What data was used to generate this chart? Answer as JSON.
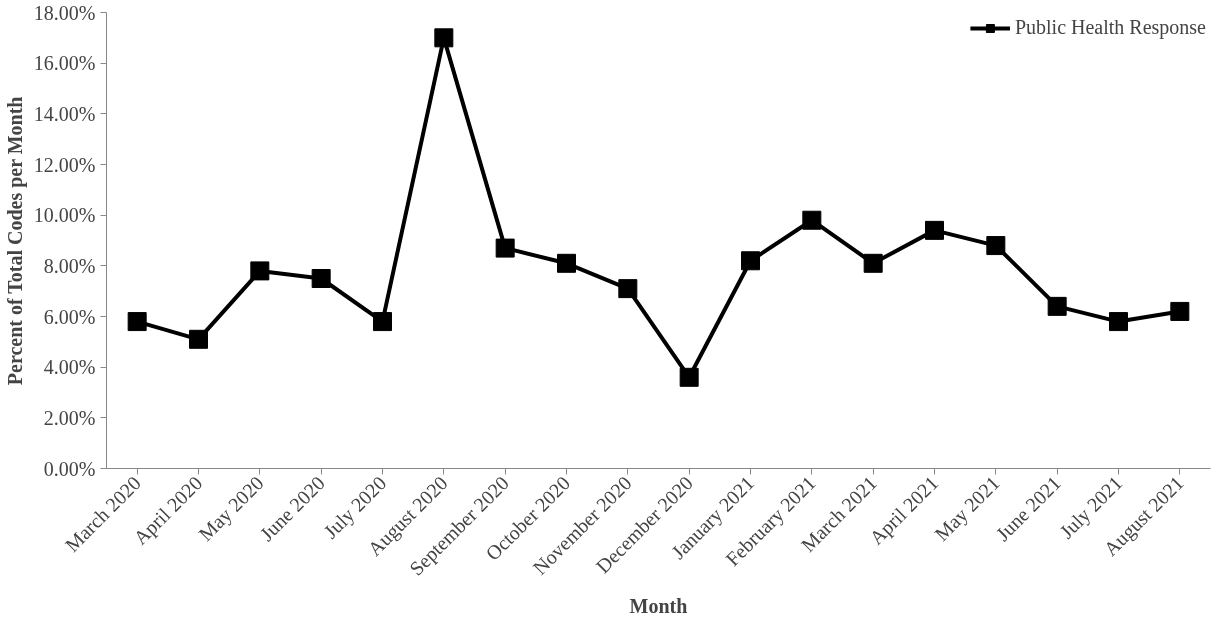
{
  "chart_data": {
    "type": "line",
    "xlabel": "Month",
    "ylabel": "Percent of Total Codes per Month",
    "categories": [
      "March 2020",
      "April 2020",
      "May 2020",
      "June 2020",
      "July 2020",
      "August 2020",
      "September 2020",
      "October 2020",
      "November 2020",
      "December 2020",
      "January 2021",
      "February 2021",
      "March 2021",
      "April 2021",
      "May 2021",
      "June 2021",
      "July 2021",
      "August 2021"
    ],
    "series": [
      {
        "name": "Public Health Response",
        "color": "#000000",
        "values": [
          5.8,
          5.1,
          7.8,
          7.5,
          5.8,
          17.0,
          8.7,
          8.1,
          7.1,
          3.6,
          8.2,
          9.8,
          8.1,
          9.4,
          8.8,
          6.4,
          5.8,
          6.2
        ]
      }
    ],
    "ylim": [
      0,
      18
    ],
    "yticks": [
      {
        "value": 0,
        "label": "0.00%"
      },
      {
        "value": 2,
        "label": "2.00%"
      },
      {
        "value": 4,
        "label": "4.00%"
      },
      {
        "value": 6,
        "label": "6.00%"
      },
      {
        "value": 8,
        "label": "8.00%"
      },
      {
        "value": 10,
        "label": "10.00%"
      },
      {
        "value": 12,
        "label": "12.00%"
      },
      {
        "value": 14,
        "label": "14.00%"
      },
      {
        "value": 16,
        "label": "16.00%"
      },
      {
        "value": 18,
        "label": "18.00%"
      }
    ],
    "grid": false,
    "legend": "top right",
    "marker": "square",
    "line_style": "solid"
  }
}
